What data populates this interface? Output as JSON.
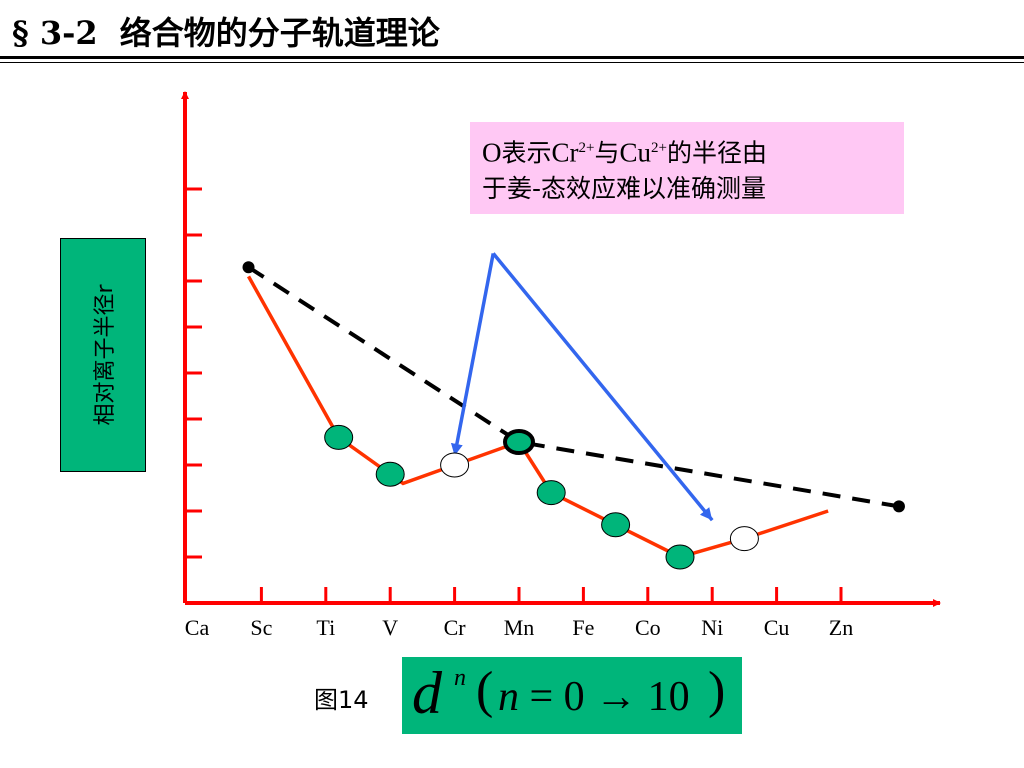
{
  "header": {
    "section_number": "§ 3-2",
    "title": "络合物的分子轨道理论"
  },
  "y_axis_label": "相对离子半径r",
  "annotation": {
    "marker_symbol": "O",
    "text_1": "表示",
    "ion_1": "Cr",
    "ion_1_charge": "2+",
    "text_2": "与",
    "ion_2": "Cu",
    "ion_2_charge": "2+",
    "text_3": "的半径由",
    "line_2": "于姜-态效应难以准确测量"
  },
  "figure_label": "图14",
  "formula": {
    "base": "d",
    "superscript": "n",
    "open_paren": "(",
    "variable": "n",
    "middle": " = 0 → 10",
    "close_paren": ")"
  },
  "colors": {
    "axis": "#ff0000",
    "measured_line": "#ff3300",
    "filled_marker": "#00b57a",
    "trend_line": "#000000",
    "arrow": "#3366ee",
    "label_box": "#00b57a",
    "annotation_box": "#ffc8f4"
  },
  "chart_data": {
    "type": "line",
    "categories": [
      "Ca",
      "Sc",
      "Ti",
      "V",
      "Cr",
      "Mn",
      "Fe",
      "Co",
      "Ni",
      "Cu",
      "Zn"
    ],
    "y_tick_count": 9,
    "y_range": [
      0,
      9
    ],
    "series": [
      {
        "style": "dashed-black",
        "points": [
          {
            "x": 0.8,
            "y": 7.3,
            "marker": "dot"
          },
          {
            "x": 5.0,
            "y": 3.5,
            "marker": "bold-ring"
          },
          {
            "x": 10.9,
            "y": 2.1,
            "marker": "dot"
          }
        ]
      },
      {
        "style": "solid-red",
        "points": [
          {
            "x": 0.8,
            "y": 7.1,
            "marker": "none"
          },
          {
            "x": 2.2,
            "y": 3.6,
            "marker": "filled"
          },
          {
            "x": 3.0,
            "y": 2.8,
            "marker": "filled"
          },
          {
            "x": 3.2,
            "y": 2.6,
            "marker": "none"
          },
          {
            "x": 4.0,
            "y": 3.0,
            "marker": "open"
          },
          {
            "x": 5.0,
            "y": 3.5,
            "marker": "bold-ring"
          },
          {
            "x": 5.5,
            "y": 2.4,
            "marker": "filled"
          },
          {
            "x": 6.5,
            "y": 1.7,
            "marker": "filled"
          },
          {
            "x": 7.5,
            "y": 1.0,
            "marker": "filled"
          },
          {
            "x": 8.5,
            "y": 1.4,
            "marker": "open"
          },
          {
            "x": 9.8,
            "y": 2.0,
            "marker": "none"
          }
        ]
      }
    ],
    "arrows": [
      {
        "from": {
          "x": 4.6,
          "y": 7.6
        },
        "to": {
          "x": 4.0,
          "y": 3.2
        }
      },
      {
        "from": {
          "x": 4.6,
          "y": 7.6
        },
        "to": {
          "x": 8.0,
          "y": 1.8
        }
      }
    ]
  }
}
